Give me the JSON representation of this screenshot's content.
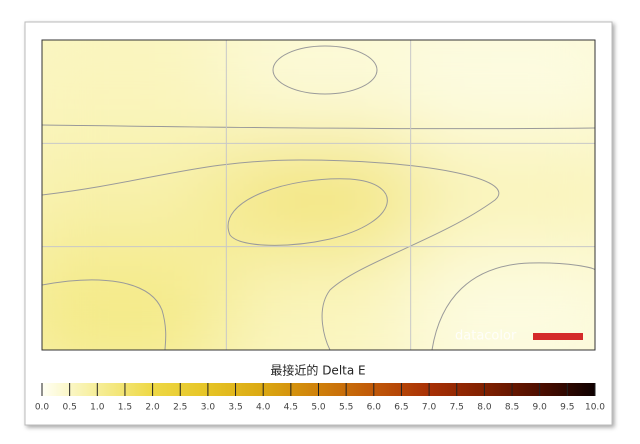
{
  "chart_data": {
    "type": "heatmap",
    "colorbar_label": "最接近的 Delta E",
    "watermark": "datacolor",
    "values": [
      [
        0.6,
        0.3,
        0.2
      ],
      [
        0.8,
        1.5,
        0.7
      ],
      [
        1.2,
        0.6,
        0.2
      ]
    ],
    "colorscale": [
      [
        0,
        "#fffff4"
      ],
      [
        1,
        "#f6ee98"
      ],
      [
        2,
        "#eed845"
      ],
      [
        3,
        "#e6c425"
      ],
      [
        4,
        "#dba812"
      ],
      [
        5,
        "#cf800a"
      ],
      [
        6,
        "#c05808"
      ],
      [
        7,
        "#a83005"
      ],
      [
        8,
        "#802000"
      ],
      [
        9,
        "#4e0e00"
      ],
      [
        10,
        "#0e0000"
      ]
    ],
    "clim": [
      0,
      10
    ],
    "cticks": [
      {
        "value": 0,
        "label": "0.0"
      },
      {
        "value": 0.5,
        "label": "0.5"
      },
      {
        "value": 1,
        "label": "1.0"
      },
      {
        "value": 1.5,
        "label": "1.5"
      },
      {
        "value": 2,
        "label": "2.0"
      },
      {
        "value": 2.5,
        "label": "2.5"
      },
      {
        "value": 3,
        "label": "3.0"
      },
      {
        "value": 3.5,
        "label": "3.5"
      },
      {
        "value": 4,
        "label": "4.0"
      },
      {
        "value": 4.5,
        "label": "4.5"
      },
      {
        "value": 5,
        "label": "5.0"
      },
      {
        "value": 5.5,
        "label": "5.5"
      },
      {
        "value": 6,
        "label": "6.0"
      },
      {
        "value": 6.5,
        "label": "6.5"
      },
      {
        "value": 7,
        "label": "7.0"
      },
      {
        "value": 7.5,
        "label": "7.5"
      },
      {
        "value": 8,
        "label": "8.0"
      },
      {
        "value": 8.5,
        "label": "8.5"
      },
      {
        "value": 9,
        "label": "9.0"
      },
      {
        "value": 9.5,
        "label": "9.5"
      },
      {
        "value": 10,
        "label": "10.0"
      }
    ],
    "grid": true
  }
}
